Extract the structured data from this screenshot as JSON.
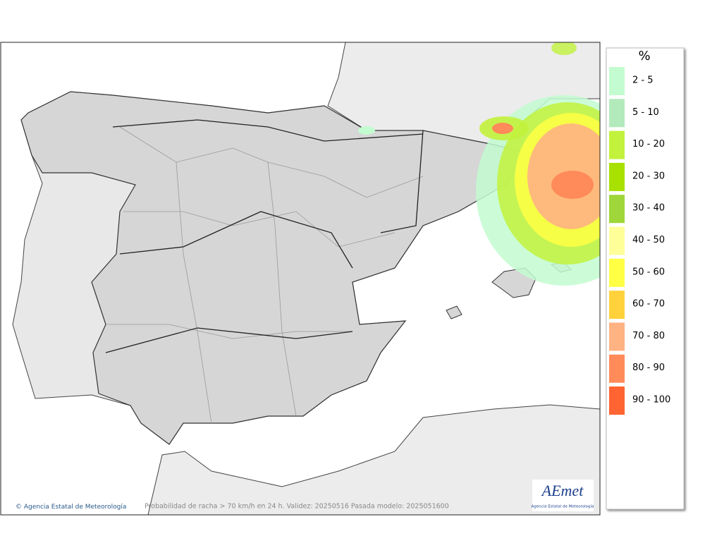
{
  "legend": {
    "title": "%",
    "items": [
      {
        "label": "2 - 5",
        "color": "#c2fcd0"
      },
      {
        "label": "5 - 10",
        "color": "#b2eabc"
      },
      {
        "label": "10 - 20",
        "color": "#c2f23c"
      },
      {
        "label": "20 - 30",
        "color": "#a8e000"
      },
      {
        "label": "30 - 40",
        "color": "#9fd63a"
      },
      {
        "label": "40 - 50",
        "color": "#ffff9a"
      },
      {
        "label": "50 - 60",
        "color": "#ffff44"
      },
      {
        "label": "60 - 70",
        "color": "#ffd23c"
      },
      {
        "label": "70 - 80",
        "color": "#ffb282"
      },
      {
        "label": "80 - 90",
        "color": "#ff8a5a"
      },
      {
        "label": "90 - 100",
        "color": "#ff6432"
      }
    ]
  },
  "footer": {
    "credit": "Agencia Estatal de Meteorología",
    "caption": "Probabilidad de racha > 70 km/h en 24 h. Validez: 20250516 Pasada modelo: 2025051600"
  },
  "logo": {
    "mark": "AEmet",
    "subtitle": "Agencia Estatal de Meteorología"
  }
}
